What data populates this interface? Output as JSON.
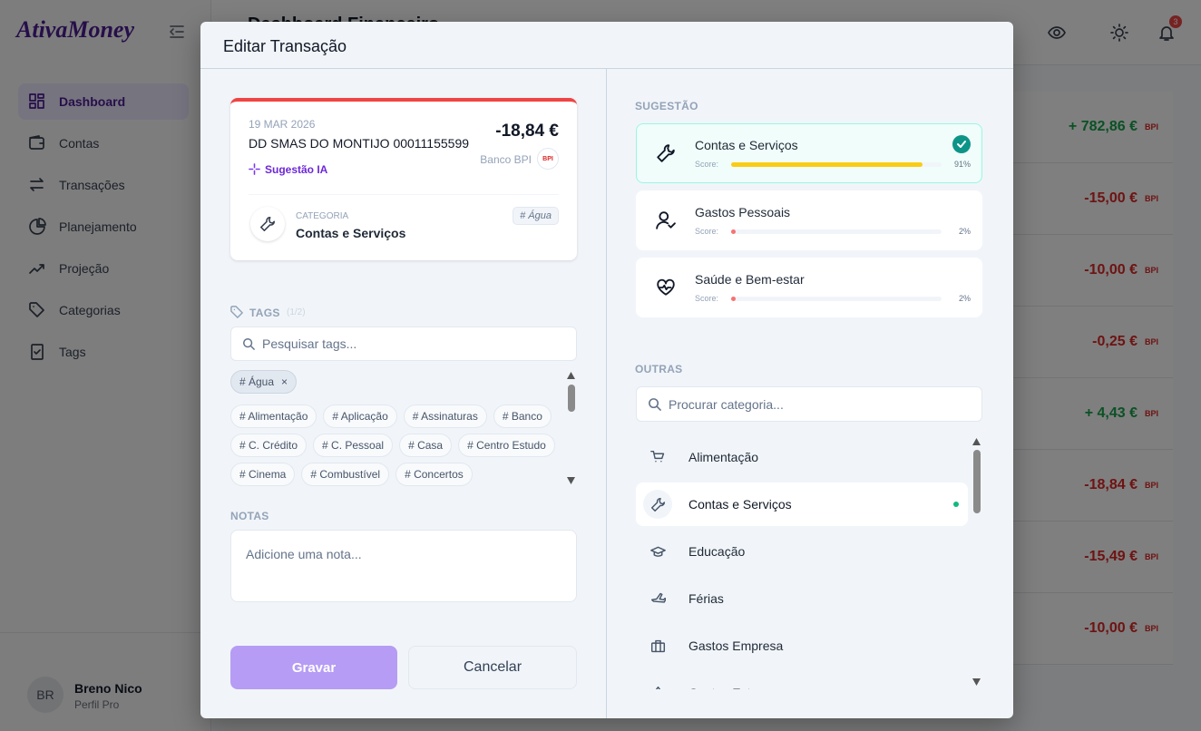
{
  "sidebar": {
    "logo": "AtivaMoney",
    "nav": [
      "Dashboard",
      "Contas",
      "Transações",
      "Planejamento",
      "Projeção",
      "Categorias",
      "Tags"
    ],
    "user": {
      "initials": "BR",
      "name": "Breno Nico",
      "plan": "Perfil Pro"
    }
  },
  "header": {
    "title": "Dashboard Financeiro",
    "notification_count": "3"
  },
  "transactions": [
    {
      "amount": "+ 782,86 €",
      "bank": "BPI"
    },
    {
      "amount": "-15,00 €",
      "bank": "BPI"
    },
    {
      "amount": "-10,00 €",
      "bank": "BPI"
    },
    {
      "amount": "-0,25 €",
      "bank": "BPI"
    },
    {
      "amount": "+ 4,43 €",
      "bank": "BPI"
    },
    {
      "amount": "-18,84 €",
      "bank": "BPI"
    },
    {
      "amount": "-15,49 €",
      "bank": "BPI"
    },
    {
      "amount": "-10,00 €",
      "bank": "BPI"
    }
  ],
  "modal": {
    "title": "Editar Transação",
    "transaction": {
      "date": "19 MAR 2026",
      "description": "DD SMAS DO MONTIJO 00011155599",
      "amount": "-18,84 €",
      "bank": "Banco BPI",
      "bank_logo": "BPI",
      "ai_label": "Sugestão IA",
      "category_caption": "CATEGORIA",
      "category": "Contas e Serviços",
      "tag": "# Água"
    },
    "tags": {
      "title": "TAGS",
      "count": "(1/2)",
      "search_placeholder": "Pesquisar tags...",
      "selected": [
        {
          "label": "# Água",
          "remove": "×"
        }
      ],
      "options": [
        "# Alimentação",
        "# Aplicação",
        "# Assinaturas",
        "# Banco",
        "# C. Crédito",
        "# C. Pessoal",
        "# Casa",
        "# Centro Estudo",
        "# Cinema",
        "# Combustível",
        "# Concertos"
      ]
    },
    "notes": {
      "title": "NOTAS",
      "placeholder": "Adicione uma nota..."
    },
    "buttons": {
      "save": "Gravar",
      "cancel": "Cancelar"
    },
    "suggestions": {
      "title": "SUGESTÃO",
      "items": [
        {
          "name": "Contas e Serviços",
          "score_caption": "Score:",
          "score": 91,
          "score_label": "91%"
        },
        {
          "name": "Gastos Pessoais",
          "score_caption": "Score:",
          "score": 2,
          "score_label": "2%"
        },
        {
          "name": "Saúde e Bem-estar",
          "score_caption": "Score:",
          "score": 2,
          "score_label": "2%"
        }
      ]
    },
    "others": {
      "title": "OUTRAS",
      "search_placeholder": "Procurar categoria...",
      "items": [
        "Alimentação",
        "Contas e Serviços",
        "Educação",
        "Férias",
        "Gastos Empresa",
        "Gastos Extra"
      ]
    }
  }
}
